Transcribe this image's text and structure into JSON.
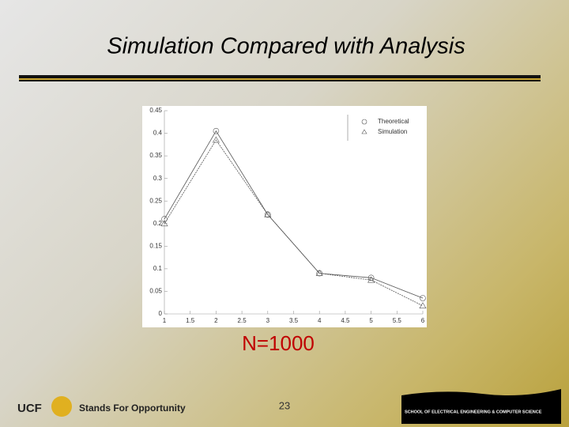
{
  "chart_data": {
    "type": "line",
    "title": "Simulation Compared with Analysis",
    "x": [
      1,
      2,
      3,
      4,
      5,
      6
    ],
    "series": [
      {
        "name": "Theoretical",
        "color": "#555555",
        "marker": "circle",
        "values": [
          0.21,
          0.405,
          0.22,
          0.09,
          0.08,
          0.035
        ]
      },
      {
        "name": "Simulation",
        "color": "#555555",
        "marker": "triangle",
        "values": [
          0.2,
          0.385,
          0.22,
          0.09,
          0.075,
          0.018
        ]
      }
    ],
    "xlim": [
      1,
      6
    ],
    "xticks": [
      1,
      1.5,
      2,
      2.5,
      3,
      3.5,
      4,
      4.5,
      5,
      5.5,
      6
    ],
    "ylim": [
      0,
      0.45
    ],
    "yticks": [
      0,
      0.05,
      0.1,
      0.15,
      0.2,
      0.25,
      0.3,
      0.35,
      0.4,
      0.45
    ],
    "legend": "upper right",
    "annotation": "N=1000"
  },
  "footer": {
    "page": "23",
    "logo": "UCF",
    "tagline": "Stands For Opportunity",
    "school": "SCHOOL OF ELECTRICAL ENGINEERING & COMPUTER SCIENCE"
  }
}
